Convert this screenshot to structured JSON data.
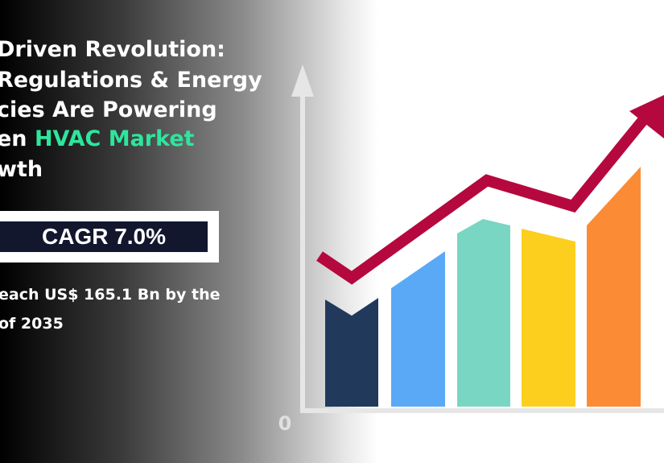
{
  "header": {
    "title_lines": [
      "Driven Revolution:",
      "Regulations & Energy",
      "cies Are Powering",
      "en ",
      "wth"
    ],
    "title_highlight": "HVAC Market"
  },
  "badge": {
    "text": "CAGR 7.0%"
  },
  "subtitle_lines": [
    "each US$ 165.1 Bn by the",
    "of 2035"
  ],
  "illustration": {
    "axis_label": "0"
  }
}
